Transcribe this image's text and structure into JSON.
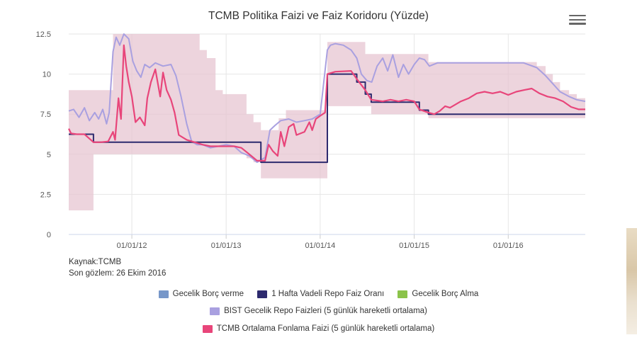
{
  "chart_data": {
    "type": "line",
    "title": "TCMB Politika Faizi ve Faiz Koridoru (Yüzde)",
    "ylim": [
      0,
      12.5
    ],
    "y_ticks": [
      "0",
      "2.5",
      "5",
      "7.5",
      "10",
      "12.5"
    ],
    "x_range": [
      "2011-05-01",
      "2016-10-26"
    ],
    "x_ticks": [
      {
        "date": "2012-01-01",
        "label": "01/01/12"
      },
      {
        "date": "2013-01-01",
        "label": "01/01/13"
      },
      {
        "date": "2014-01-01",
        "label": "01/01/14"
      },
      {
        "date": "2015-01-01",
        "label": "01/01/15"
      },
      {
        "date": "2016-01-01",
        "label": "01/01/16"
      }
    ],
    "grid": true,
    "legend_placement": "bottom",
    "series": [
      {
        "name": "Gecelik Borç verme",
        "color": "#7797c9",
        "values": [
          [
            "2011-05-01",
            9
          ],
          [
            "2011-10-20",
            12.5
          ],
          [
            "2012-09-20",
            11.5
          ],
          [
            "2012-10-18",
            11
          ],
          [
            "2012-11-21",
            9
          ],
          [
            "2012-12-19",
            8.75
          ],
          [
            "2013-03-21",
            7.5
          ],
          [
            "2013-04-17",
            7
          ],
          [
            "2013-05-16",
            6.5
          ],
          [
            "2013-07-24",
            7.25
          ],
          [
            "2013-08-21",
            7.75
          ],
          [
            "2014-01-29",
            12
          ],
          [
            "2014-05-23",
            12
          ],
          [
            "2014-06-25",
            11.25
          ],
          [
            "2015-02-25",
            10.75
          ],
          [
            "2016-04-21",
            10.5
          ],
          [
            "2016-05-25",
            10
          ],
          [
            "2016-06-22",
            9.5
          ],
          [
            "2016-07-20",
            9
          ],
          [
            "2016-08-24",
            8.75
          ],
          [
            "2016-09-23",
            8.5
          ],
          [
            "2016-10-26",
            8.25
          ]
        ]
      },
      {
        "name": "1 Hafta Vadeli Repo Faiz Oranı",
        "color": "#2d2a6e",
        "values": [
          [
            "2011-05-01",
            6.25
          ],
          [
            "2011-08-05",
            5.75
          ],
          [
            "2013-05-16",
            4.5
          ],
          [
            "2014-01-29",
            10
          ],
          [
            "2014-05-23",
            9.5
          ],
          [
            "2014-06-25",
            8.75
          ],
          [
            "2014-07-18",
            8.25
          ],
          [
            "2015-01-21",
            7.75
          ],
          [
            "2015-02-25",
            7.5
          ],
          [
            "2016-10-26",
            7.5
          ]
        ]
      },
      {
        "name": "Gecelik Borç Alma",
        "color": "#8bc34a",
        "values": [
          [
            "2011-05-01",
            1.5
          ],
          [
            "2011-08-05",
            5
          ],
          [
            "2012-10-18",
            5
          ],
          [
            "2012-11-21",
            5
          ],
          [
            "2012-12-19",
            5
          ],
          [
            "2013-03-21",
            4.75
          ],
          [
            "2013-04-17",
            4.5
          ],
          [
            "2013-05-16",
            3.5
          ],
          [
            "2014-01-29",
            8
          ],
          [
            "2014-07-18",
            7.5
          ],
          [
            "2015-01-21",
            7.5
          ],
          [
            "2015-02-25",
            7.25
          ],
          [
            "2016-10-26",
            7.25
          ]
        ]
      },
      {
        "name": "BIST Gecelik Repo Faizleri (5 günlük hareketli ortalama)",
        "color": "#a9a0e0",
        "values": [
          [
            "2011-05-01",
            7.7
          ],
          [
            "2011-05-20",
            7.8
          ],
          [
            "2011-06-10",
            7.3
          ],
          [
            "2011-07-01",
            7.9
          ],
          [
            "2011-07-20",
            7.1
          ],
          [
            "2011-08-10",
            7.6
          ],
          [
            "2011-08-25",
            7.2
          ],
          [
            "2011-09-10",
            7.8
          ],
          [
            "2011-09-25",
            6.9
          ],
          [
            "2011-10-05",
            7.6
          ],
          [
            "2011-10-20",
            11.4
          ],
          [
            "2011-11-01",
            12.3
          ],
          [
            "2011-11-15",
            11.8
          ],
          [
            "2011-12-01",
            12.5
          ],
          [
            "2011-12-20",
            12.2
          ],
          [
            "2012-01-05",
            10.8
          ],
          [
            "2012-01-20",
            10.2
          ],
          [
            "2012-02-05",
            9.8
          ],
          [
            "2012-02-20",
            10.6
          ],
          [
            "2012-03-10",
            10.4
          ],
          [
            "2012-04-01",
            10.7
          ],
          [
            "2012-05-01",
            10.5
          ],
          [
            "2012-06-01",
            10.6
          ],
          [
            "2012-06-20",
            9.9
          ],
          [
            "2012-07-10",
            8.6
          ],
          [
            "2012-08-01",
            6.9
          ],
          [
            "2012-08-20",
            5.8
          ],
          [
            "2012-09-10",
            5.6
          ],
          [
            "2012-10-01",
            5.6
          ],
          [
            "2012-11-01",
            5.4
          ],
          [
            "2012-12-01",
            5.5
          ],
          [
            "2013-01-01",
            5.6
          ],
          [
            "2013-02-01",
            5.5
          ],
          [
            "2013-03-01",
            5.1
          ],
          [
            "2013-04-01",
            4.9
          ],
          [
            "2013-05-01",
            4.5
          ],
          [
            "2013-06-01",
            4.8
          ],
          [
            "2013-06-20",
            6.5
          ],
          [
            "2013-07-10",
            6.8
          ],
          [
            "2013-08-01",
            7.1
          ],
          [
            "2013-09-01",
            7.2
          ],
          [
            "2013-10-01",
            7.0
          ],
          [
            "2013-11-01",
            7.1
          ],
          [
            "2013-12-01",
            7.2
          ],
          [
            "2014-01-01",
            7.5
          ],
          [
            "2014-01-29",
            11.5
          ],
          [
            "2014-02-10",
            11.8
          ],
          [
            "2014-03-01",
            11.9
          ],
          [
            "2014-04-01",
            11.8
          ],
          [
            "2014-05-01",
            11.5
          ],
          [
            "2014-05-23",
            11.0
          ],
          [
            "2014-06-10",
            10.0
          ],
          [
            "2014-07-01",
            9.6
          ],
          [
            "2014-07-20",
            9.5
          ],
          [
            "2014-08-10",
            10.5
          ],
          [
            "2014-09-01",
            11.0
          ],
          [
            "2014-09-20",
            10.2
          ],
          [
            "2014-10-10",
            11.2
          ],
          [
            "2014-11-01",
            9.8
          ],
          [
            "2014-11-20",
            10.6
          ],
          [
            "2014-12-10",
            10.0
          ],
          [
            "2015-01-01",
            10.6
          ],
          [
            "2015-01-21",
            11.0
          ],
          [
            "2015-02-10",
            10.9
          ],
          [
            "2015-03-01",
            10.5
          ],
          [
            "2015-04-01",
            10.7
          ],
          [
            "2015-06-01",
            10.7
          ],
          [
            "2015-09-01",
            10.7
          ],
          [
            "2016-01-01",
            10.7
          ],
          [
            "2016-03-01",
            10.7
          ],
          [
            "2016-04-21",
            10.4
          ],
          [
            "2016-05-25",
            9.9
          ],
          [
            "2016-06-22",
            9.4
          ],
          [
            "2016-07-20",
            8.9
          ],
          [
            "2016-08-24",
            8.6
          ],
          [
            "2016-09-23",
            8.4
          ],
          [
            "2016-10-26",
            8.3
          ]
        ]
      },
      {
        "name": "TCMB Ortalama Fonlama Faizi (5 günlük hareketli ortalama)",
        "color": "#e8457a",
        "values": [
          [
            "2011-05-01",
            6.6
          ],
          [
            "2011-05-10",
            6.3
          ],
          [
            "2011-06-01",
            6.25
          ],
          [
            "2011-07-01",
            6.25
          ],
          [
            "2011-08-05",
            5.75
          ],
          [
            "2011-09-01",
            5.75
          ],
          [
            "2011-10-01",
            5.8
          ],
          [
            "2011-10-20",
            6.4
          ],
          [
            "2011-10-28",
            5.9
          ],
          [
            "2011-11-10",
            8.5
          ],
          [
            "2011-11-20",
            7.2
          ],
          [
            "2011-12-01",
            11.8
          ],
          [
            "2011-12-10",
            10.5
          ],
          [
            "2011-12-20",
            9.5
          ],
          [
            "2012-01-01",
            8.6
          ],
          [
            "2012-01-15",
            7.0
          ],
          [
            "2012-02-01",
            7.3
          ],
          [
            "2012-02-20",
            6.8
          ],
          [
            "2012-03-01",
            8.5
          ],
          [
            "2012-03-15",
            9.5
          ],
          [
            "2012-04-01",
            10.3
          ],
          [
            "2012-04-20",
            8.6
          ],
          [
            "2012-05-01",
            10.1
          ],
          [
            "2012-05-15",
            9.0
          ],
          [
            "2012-06-01",
            8.4
          ],
          [
            "2012-06-15",
            7.6
          ],
          [
            "2012-07-01",
            6.2
          ],
          [
            "2012-08-01",
            5.9
          ],
          [
            "2012-09-01",
            5.75
          ],
          [
            "2012-10-01",
            5.6
          ],
          [
            "2012-11-01",
            5.5
          ],
          [
            "2012-12-01",
            5.5
          ],
          [
            "2013-01-01",
            5.5
          ],
          [
            "2013-02-01",
            5.5
          ],
          [
            "2013-03-01",
            5.4
          ],
          [
            "2013-04-01",
            5.0
          ],
          [
            "2013-05-01",
            4.6
          ],
          [
            "2013-06-01",
            4.6
          ],
          [
            "2013-06-15",
            5.6
          ],
          [
            "2013-07-01",
            5.2
          ],
          [
            "2013-07-20",
            4.9
          ],
          [
            "2013-08-01",
            6.4
          ],
          [
            "2013-08-15",
            5.5
          ],
          [
            "2013-09-01",
            6.7
          ],
          [
            "2013-09-20",
            6.9
          ],
          [
            "2013-10-01",
            6.2
          ],
          [
            "2013-11-01",
            6.4
          ],
          [
            "2013-11-20",
            7.0
          ],
          [
            "2013-12-01",
            6.5
          ],
          [
            "2013-12-15",
            7.2
          ],
          [
            "2014-01-01",
            7.4
          ],
          [
            "2014-01-20",
            7.6
          ],
          [
            "2014-01-29",
            10.0
          ],
          [
            "2014-03-01",
            10.15
          ],
          [
            "2014-05-01",
            10.2
          ],
          [
            "2014-05-23",
            9.7
          ],
          [
            "2014-06-25",
            9.0
          ],
          [
            "2014-07-18",
            8.4
          ],
          [
            "2014-09-01",
            8.3
          ],
          [
            "2014-10-01",
            8.4
          ],
          [
            "2014-11-01",
            8.3
          ],
          [
            "2014-12-01",
            8.4
          ],
          [
            "2015-01-01",
            8.3
          ],
          [
            "2015-01-21",
            7.8
          ],
          [
            "2015-02-25",
            7.6
          ],
          [
            "2015-03-20",
            7.5
          ],
          [
            "2015-04-10",
            7.7
          ],
          [
            "2015-05-01",
            8.0
          ],
          [
            "2015-05-20",
            7.9
          ],
          [
            "2015-07-01",
            8.3
          ],
          [
            "2015-08-01",
            8.5
          ],
          [
            "2015-09-01",
            8.8
          ],
          [
            "2015-10-01",
            8.9
          ],
          [
            "2015-11-01",
            8.8
          ],
          [
            "2015-12-01",
            8.9
          ],
          [
            "2016-01-01",
            8.7
          ],
          [
            "2016-02-01",
            8.9
          ],
          [
            "2016-03-01",
            9.0
          ],
          [
            "2016-04-01",
            9.1
          ],
          [
            "2016-05-01",
            8.8
          ],
          [
            "2016-06-01",
            8.6
          ],
          [
            "2016-07-01",
            8.5
          ],
          [
            "2016-08-01",
            8.3
          ],
          [
            "2016-09-01",
            7.95
          ],
          [
            "2016-10-01",
            7.8
          ],
          [
            "2016-10-26",
            7.8
          ]
        ]
      }
    ],
    "corridor": {
      "color": "#e6c4d0"
    }
  },
  "title": "TCMB Politika Faizi ve Faiz Koridoru (Yüzde)",
  "credits": {
    "source": "Kaynak:TCMB",
    "last_obs": "Son gözlem: 26 Ekim 2016"
  },
  "legend": {
    "items": [
      {
        "label": "Gecelik Borç verme",
        "color": "#7797c9"
      },
      {
        "label": "1 Hafta Vadeli Repo Faiz Oranı",
        "color": "#2d2a6e"
      },
      {
        "label": "Gecelik Borç Alma",
        "color": "#8bc34a"
      },
      {
        "label": "BIST Gecelik Repo Faizleri (5 günlük hareketli ortalama)",
        "color": "#a9a0e0"
      },
      {
        "label": "TCMB Ortalama Fonlama Faizi (5 günlük hareketli ortalama)",
        "color": "#e8457a"
      }
    ]
  },
  "menu_icon": "hamburger-menu-icon"
}
